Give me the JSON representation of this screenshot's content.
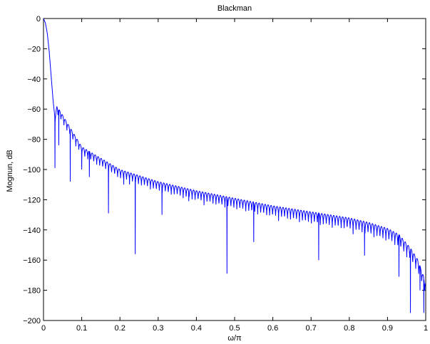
{
  "chart_data": {
    "type": "line",
    "title": "Blackman",
    "xlabel": "ω/π",
    "ylabel": "Mognun, dB",
    "xlim": [
      0,
      1
    ],
    "ylim": [
      -200,
      0
    ],
    "xticks": [
      "0",
      "0.1",
      "0.2",
      "0.3",
      "0.4",
      "0.5",
      "0.6",
      "0.7",
      "0.8",
      "0.9",
      "1"
    ],
    "yticks": [
      "0",
      "−20",
      "−40",
      "−60",
      "−80",
      "−100",
      "−120",
      "−140",
      "−160",
      "−180",
      "−200"
    ],
    "grid": false,
    "legend": "none",
    "line_color": "#0000ff",
    "series": [
      {
        "description": "Magnitude response of a Blackman window, mainlobe to ~0.03 then sidelobe ripple with deep nulls",
        "envelope_x": [
          0.0,
          0.005,
          0.01,
          0.015,
          0.02,
          0.025,
          0.03,
          0.035,
          0.05,
          0.1,
          0.2,
          0.3,
          0.4,
          0.5,
          0.6,
          0.7,
          0.8,
          0.85,
          0.9,
          0.93,
          0.96,
          0.98,
          1.0
        ],
        "envelope_y": [
          0,
          -3,
          -10,
          -22,
          -38,
          -54,
          -66,
          -58,
          -64,
          -85,
          -100,
          -108,
          -114,
          -119,
          -124,
          -128,
          -132,
          -135,
          -139,
          -143,
          -152,
          -160,
          -175
        ],
        "null_x": [
          0.03,
          0.04,
          0.07,
          0.1,
          0.12,
          0.17,
          0.21,
          0.24,
          0.31,
          0.38,
          0.48,
          0.55,
          0.72,
          0.84,
          0.93,
          0.96,
          0.985,
          0.995
        ],
        "null_y": [
          -99,
          -84,
          -108,
          -100,
          -105,
          -129,
          -110,
          -156,
          -130,
          -121,
          -169,
          -148,
          -160,
          -157,
          -171,
          -195,
          -180,
          -195
        ]
      }
    ]
  }
}
